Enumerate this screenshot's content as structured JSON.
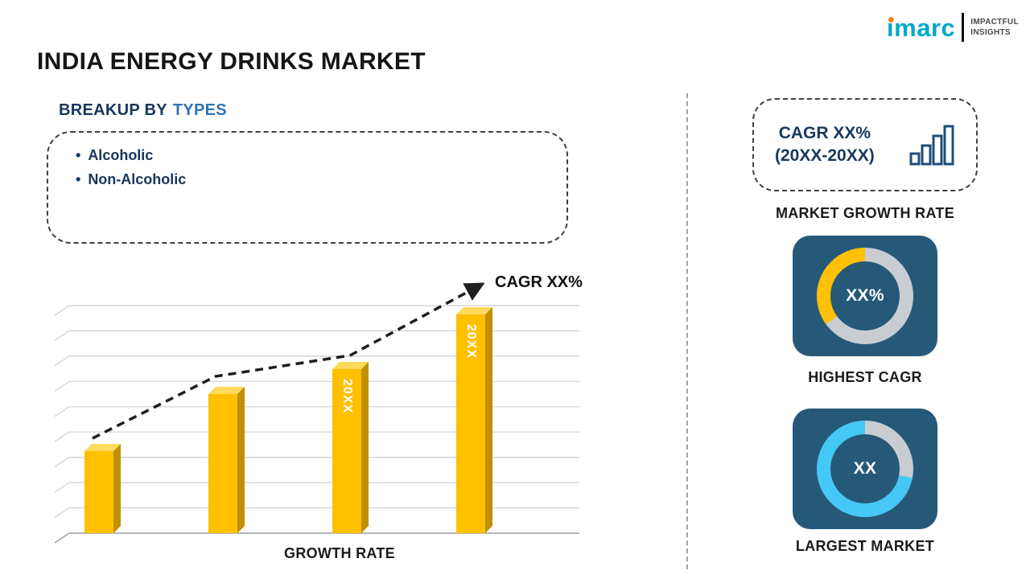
{
  "page": {
    "title": "INDIA ENERGY DRINKS MARKET"
  },
  "logo": {
    "brand": "imarc",
    "tagline_line1": "IMPACTFUL",
    "tagline_line2": "INSIGHTS"
  },
  "breakup": {
    "heading_prefix": "BREAKUP BY",
    "heading_highlight": "TYPES",
    "items": [
      "Alcoholic",
      "Non-Alcoholic"
    ]
  },
  "growth_chart": {
    "xlabel": "GROWTH RATE",
    "trend_label": "CAGR XX%"
  },
  "sidebar": {
    "cagr_card": {
      "line1": "CAGR XX%",
      "line2": "(20XX-20XX)"
    },
    "market_growth_label": "MARKET GROWTH RATE",
    "highest_cagr": {
      "center": "XX%",
      "label": "HIGHEST CAGR"
    },
    "largest_market": {
      "center": "XX",
      "label": "LARGEST MARKET"
    }
  },
  "colors": {
    "navy_text": "#17375d",
    "blue_accent": "#2e74b5",
    "bar_yellow": "#ffc000",
    "bar_side": "#bf9000",
    "bar_top": "#ffd95c",
    "card_bg": "#265978",
    "ring_gray": "#c9cdd2",
    "ring_yellow": "#ffc107",
    "ring_cyan": "#45c8f5",
    "logo_teal": "#00a9c9",
    "logo_dot_orange": "#f58220"
  },
  "chart_data": {
    "type": "bar",
    "title": "India Energy Drinks Market — Growth Rate",
    "categories": [
      "",
      "",
      "20XX",
      "20XX"
    ],
    "values": [
      36,
      61,
      72,
      96
    ],
    "bar_labels": [
      "",
      "",
      "20XX",
      "20XX"
    ],
    "xlabel": "GROWTH RATE",
    "ylabel": "",
    "ylim": [
      0,
      100
    ],
    "grid": true,
    "legend": false,
    "trend_line": {
      "label": "CAGR XX%",
      "style": "dashed ascending arrow"
    },
    "donuts": [
      {
        "name": "HIGHEST CAGR",
        "center_text": "XX%",
        "segment_percent": 35,
        "segment_color": "#ffc107",
        "ring_color": "#c9cdd2"
      },
      {
        "name": "LARGEST MARKET",
        "center_text": "XX",
        "segment_percent": 72,
        "segment_color": "#45c8f5",
        "ring_color": "#c9cdd2"
      }
    ]
  }
}
